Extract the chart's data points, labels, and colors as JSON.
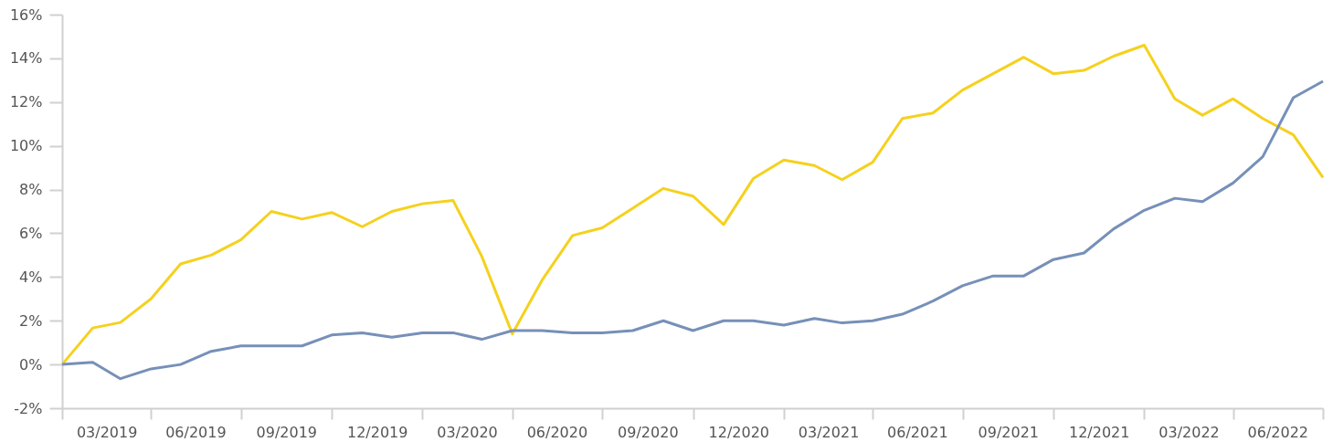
{
  "chart_data": {
    "type": "line",
    "x": [
      "2019-01",
      "2019-02",
      "2019-03",
      "2019-04",
      "2019-05",
      "2019-06",
      "2019-07",
      "2019-08",
      "2019-09",
      "2019-10",
      "2019-11",
      "2019-12",
      "2020-01",
      "2020-02",
      "2020-03",
      "2020-04",
      "2020-05",
      "2020-06",
      "2020-07",
      "2020-08",
      "2020-09",
      "2020-10",
      "2020-11",
      "2020-12",
      "2021-01",
      "2021-02",
      "2021-03",
      "2021-04",
      "2021-05",
      "2021-06",
      "2021-07",
      "2021-08",
      "2021-09",
      "2021-10",
      "2021-11",
      "2021-12",
      "2022-01",
      "2022-02",
      "2022-03",
      "2022-04",
      "2022-05",
      "2022-06",
      "2022-07"
    ],
    "series": [
      {
        "color": "#f5d11e",
        "values": [
          0,
          1.67,
          1.92,
          3.0,
          4.6,
          5.0,
          5.7,
          7.0,
          6.65,
          6.95,
          6.3,
          7.0,
          7.35,
          7.5,
          4.95,
          1.4,
          3.85,
          5.9,
          6.25,
          7.15,
          8.05,
          7.7,
          6.4,
          8.5,
          9.35,
          9.1,
          8.45,
          9.25,
          11.25,
          11.5,
          12.55,
          13.3,
          14.05,
          13.3,
          13.45,
          14.1,
          14.6,
          12.15,
          11.4,
          12.15,
          11.25,
          10.5,
          8.55
        ]
      },
      {
        "color": "#7690b8",
        "values": [
          0,
          0.1,
          -0.65,
          -0.2,
          0,
          0.6,
          0.85,
          0.85,
          0.85,
          1.35,
          1.45,
          1.25,
          1.45,
          1.45,
          1.15,
          1.55,
          1.55,
          1.45,
          1.45,
          1.55,
          2.0,
          1.55,
          2.0,
          2.0,
          1.8,
          2.1,
          1.9,
          2.0,
          2.3,
          2.9,
          3.6,
          4.05,
          4.05,
          4.8,
          5.1,
          6.2,
          7.05,
          7.6,
          7.45,
          8.3,
          9.5,
          12.2,
          12.95
        ]
      }
    ],
    "xlim": [
      "2019-01",
      "2022-07"
    ],
    "xticks": [
      {
        "value": "2019-01",
        "label": null
      },
      {
        "value": "2019-02-15",
        "label": "03/2019"
      },
      {
        "value": "2019-04",
        "label": null
      },
      {
        "value": "2019-05-16",
        "label": "06/2019"
      },
      {
        "value": "2019-07",
        "label": null
      },
      {
        "value": "2019-08-16",
        "label": "09/2019"
      },
      {
        "value": "2019-10",
        "label": null
      },
      {
        "value": "2019-11-16",
        "label": "12/2019"
      },
      {
        "value": "2020-01",
        "label": null
      },
      {
        "value": "2020-02-15",
        "label": "03/2020"
      },
      {
        "value": "2020-04",
        "label": null
      },
      {
        "value": "2020-05-16",
        "label": "06/2020"
      },
      {
        "value": "2020-07",
        "label": null
      },
      {
        "value": "2020-08-16",
        "label": "09/2020"
      },
      {
        "value": "2020-10",
        "label": null
      },
      {
        "value": "2020-11-16",
        "label": "12/2020"
      },
      {
        "value": "2021-01",
        "label": null
      },
      {
        "value": "2021-02-15",
        "label": "03/2021"
      },
      {
        "value": "2021-04",
        "label": null
      },
      {
        "value": "2021-05-16",
        "label": "06/2021"
      },
      {
        "value": "2021-07",
        "label": null
      },
      {
        "value": "2021-08-16",
        "label": "09/2021"
      },
      {
        "value": "2021-10",
        "label": null
      },
      {
        "value": "2021-11-16",
        "label": "12/2021"
      },
      {
        "value": "2022-01",
        "label": null
      },
      {
        "value": "2022-02-15",
        "label": "03/2022"
      },
      {
        "value": "2022-04",
        "label": null
      },
      {
        "value": "2022-05-16",
        "label": "06/2022"
      },
      {
        "value": "2022-07",
        "label": null
      }
    ],
    "ylim": [
      -2,
      16
    ],
    "yticks": [
      {
        "value": -2,
        "label": "-2%"
      },
      {
        "value": 0,
        "label": "0%"
      },
      {
        "value": 2,
        "label": "2%"
      },
      {
        "value": 4,
        "label": "4%"
      },
      {
        "value": 6,
        "label": "6%"
      },
      {
        "value": 8,
        "label": "8%"
      },
      {
        "value": 10,
        "label": "10%"
      },
      {
        "value": 12,
        "label": "12%"
      },
      {
        "value": 14,
        "label": "14%"
      },
      {
        "value": 16,
        "label": "16%"
      }
    ],
    "grid": false,
    "marker": "none",
    "line_style": "solid"
  }
}
